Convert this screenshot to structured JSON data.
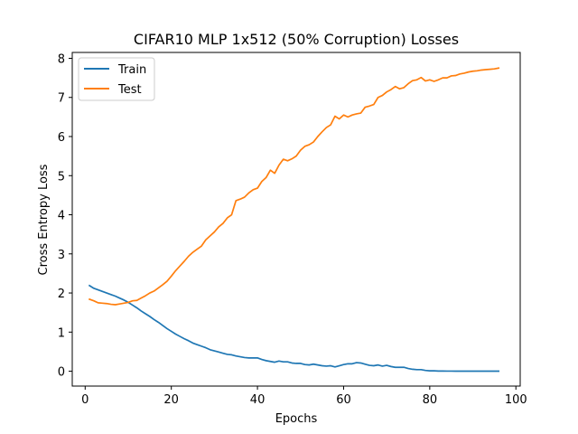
{
  "chart_data": {
    "type": "line",
    "title": "CIFAR10 MLP 1x512 (50% Corruption) Losses",
    "xlabel": "Epochs",
    "ylabel": "Cross Entropy Loss",
    "xlim": [
      -3,
      101
    ],
    "ylim": [
      -0.38,
      8.15
    ],
    "xticks": [
      0,
      20,
      40,
      60,
      80,
      100
    ],
    "yticks": [
      0,
      1,
      2,
      3,
      4,
      5,
      6,
      7,
      8
    ],
    "grid": false,
    "legend_position": "top-left",
    "series": [
      {
        "name": "Train",
        "color": "#1f77b4",
        "x": [
          1,
          2,
          3,
          4,
          5,
          6,
          7,
          8,
          9,
          10,
          11,
          12,
          13,
          14,
          15,
          16,
          17,
          18,
          19,
          20,
          21,
          22,
          23,
          24,
          25,
          26,
          27,
          28,
          29,
          30,
          31,
          32,
          33,
          34,
          35,
          36,
          37,
          38,
          39,
          40,
          41,
          42,
          43,
          44,
          45,
          46,
          47,
          48,
          49,
          50,
          51,
          52,
          53,
          54,
          55,
          56,
          57,
          58,
          59,
          60,
          61,
          62,
          63,
          64,
          65,
          66,
          67,
          68,
          69,
          70,
          71,
          72,
          73,
          74,
          75,
          76,
          77,
          78,
          79,
          80,
          81,
          82,
          83,
          84,
          85,
          86,
          87,
          88,
          89,
          90,
          91,
          92,
          93,
          94,
          95,
          96
        ],
        "y": [
          2.19,
          2.12,
          2.08,
          2.04,
          2.0,
          1.96,
          1.92,
          1.87,
          1.82,
          1.76,
          1.69,
          1.62,
          1.54,
          1.47,
          1.4,
          1.32,
          1.25,
          1.17,
          1.09,
          1.02,
          0.95,
          0.89,
          0.83,
          0.78,
          0.72,
          0.68,
          0.64,
          0.6,
          0.55,
          0.52,
          0.49,
          0.46,
          0.43,
          0.42,
          0.39,
          0.37,
          0.35,
          0.34,
          0.34,
          0.34,
          0.3,
          0.27,
          0.25,
          0.23,
          0.26,
          0.24,
          0.24,
          0.21,
          0.2,
          0.2,
          0.17,
          0.16,
          0.18,
          0.16,
          0.14,
          0.13,
          0.14,
          0.11,
          0.14,
          0.17,
          0.19,
          0.19,
          0.22,
          0.21,
          0.18,
          0.15,
          0.14,
          0.16,
          0.13,
          0.15,
          0.12,
          0.1,
          0.1,
          0.1,
          0.07,
          0.05,
          0.04,
          0.04,
          0.02,
          0.01,
          0.01,
          0.005,
          0.004,
          0.003,
          0.003,
          0.002,
          0.002,
          0.002,
          0.002,
          0.002,
          0.002,
          0.002,
          0.002,
          0.002,
          0.002,
          0.002
        ]
      },
      {
        "name": "Test",
        "color": "#ff7f0e",
        "x": [
          1,
          2,
          3,
          4,
          5,
          6,
          7,
          8,
          9,
          10,
          11,
          12,
          13,
          14,
          15,
          16,
          17,
          18,
          19,
          20,
          21,
          22,
          23,
          24,
          25,
          26,
          27,
          28,
          29,
          30,
          31,
          32,
          33,
          34,
          35,
          36,
          37,
          38,
          39,
          40,
          41,
          42,
          43,
          44,
          45,
          46,
          47,
          48,
          49,
          50,
          51,
          52,
          53,
          54,
          55,
          56,
          57,
          58,
          59,
          60,
          61,
          62,
          63,
          64,
          65,
          66,
          67,
          68,
          69,
          70,
          71,
          72,
          73,
          74,
          75,
          76,
          77,
          78,
          79,
          80,
          81,
          82,
          83,
          84,
          85,
          86,
          87,
          88,
          89,
          90,
          91,
          92,
          93,
          94,
          95,
          96
        ],
        "y": [
          1.84,
          1.8,
          1.75,
          1.74,
          1.73,
          1.71,
          1.7,
          1.72,
          1.74,
          1.76,
          1.8,
          1.81,
          1.87,
          1.93,
          2.0,
          2.05,
          2.13,
          2.21,
          2.3,
          2.43,
          2.57,
          2.69,
          2.81,
          2.94,
          3.04,
          3.12,
          3.2,
          3.36,
          3.46,
          3.56,
          3.69,
          3.78,
          3.92,
          4.0,
          4.36,
          4.4,
          4.45,
          4.56,
          4.64,
          4.68,
          4.85,
          4.95,
          5.14,
          5.06,
          5.27,
          5.42,
          5.38,
          5.43,
          5.5,
          5.65,
          5.75,
          5.79,
          5.86,
          6.0,
          6.12,
          6.23,
          6.3,
          6.52,
          6.45,
          6.55,
          6.5,
          6.55,
          6.58,
          6.6,
          6.75,
          6.78,
          6.82,
          7.0,
          7.05,
          7.14,
          7.2,
          7.28,
          7.22,
          7.25,
          7.35,
          7.43,
          7.45,
          7.51,
          7.42,
          7.45,
          7.41,
          7.45,
          7.5,
          7.5,
          7.55,
          7.56,
          7.6,
          7.62,
          7.65,
          7.67,
          7.68,
          7.7,
          7.71,
          7.72,
          7.73,
          7.75
        ]
      }
    ]
  }
}
